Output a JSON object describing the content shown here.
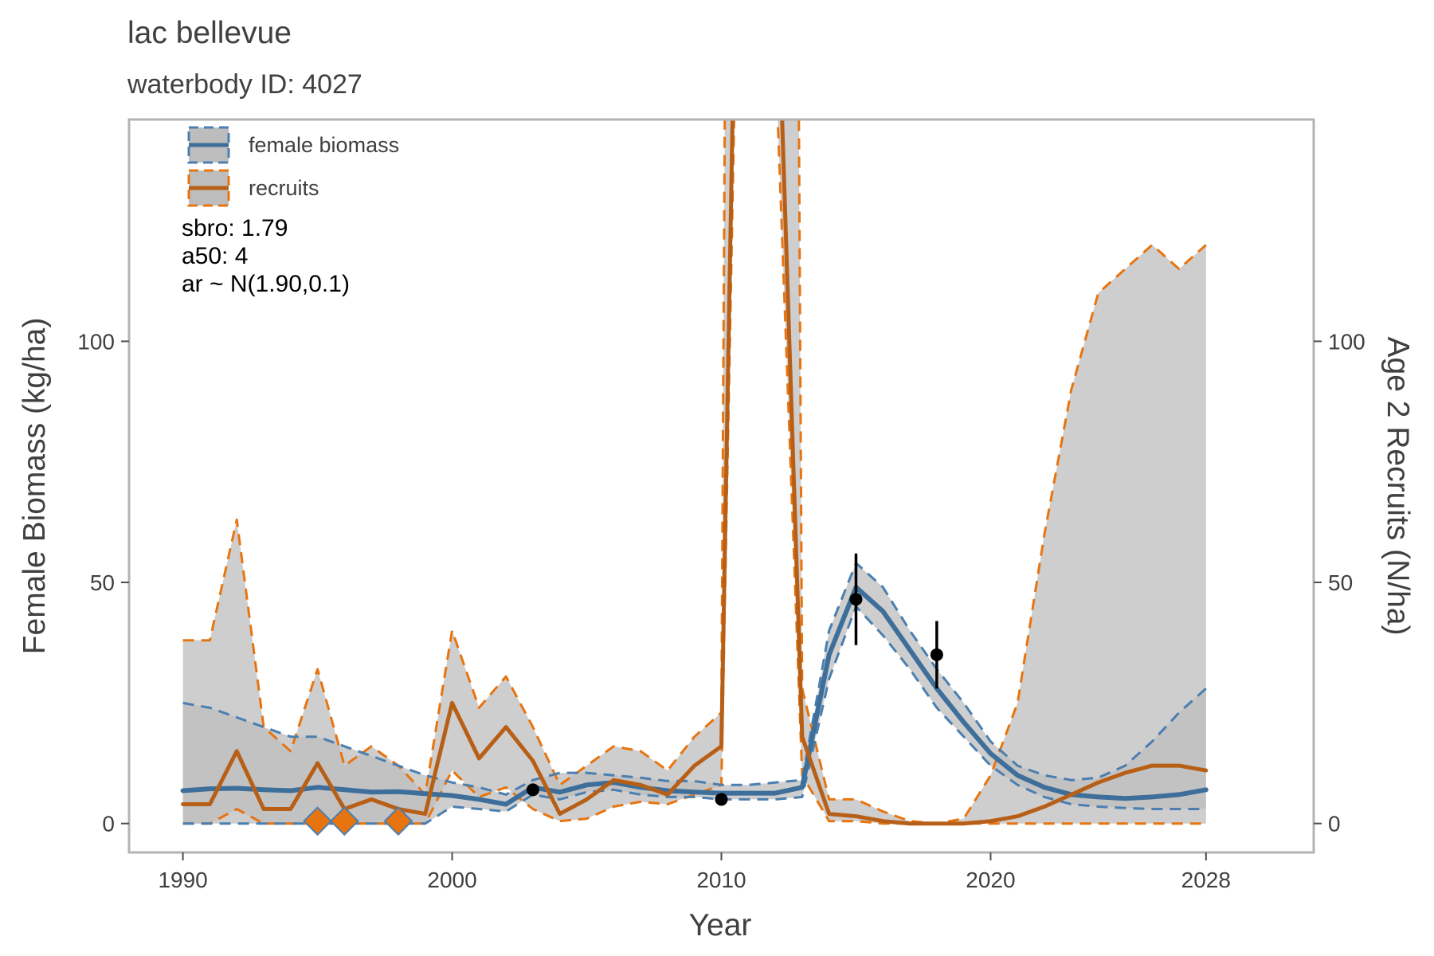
{
  "chart_data": {
    "type": "line",
    "title": "lac bellevue",
    "subtitle": "waterbody ID: 4027",
    "xlabel": "Year",
    "ylabel_left": "Female Biomass (kg/ha)",
    "ylabel_right": "Age 2 Recruits (N/ha)",
    "xlim": [
      1988,
      2032
    ],
    "ylim": [
      -6,
      146
    ],
    "x_ticks": [
      1990,
      2000,
      2010,
      2020,
      2028
    ],
    "y_ticks": [
      0,
      50,
      100
    ],
    "y_ticks_right": [
      0,
      50,
      100
    ],
    "grid": false,
    "legend_position": "top-left",
    "annotations": [
      "sbro: 1.79",
      "a50: 4",
      "ar ~ N(1.90,0.1)"
    ],
    "colors": {
      "biomass": "#3e6f9a",
      "biomass_dash": "#4a7fb0",
      "recruits": "#b85f17",
      "recruits_dash": "#e8740f",
      "band": "#bdbdbd",
      "marker": "#e8740f",
      "points": "#000000"
    },
    "series": [
      {
        "name": "female biomass",
        "x": [
          1990,
          1991,
          1992,
          1993,
          1994,
          1995,
          1996,
          1997,
          1998,
          1999,
          2000,
          2001,
          2002,
          2003,
          2004,
          2005,
          2006,
          2007,
          2008,
          2009,
          2010,
          2011,
          2012,
          2013,
          2014,
          2015,
          2016,
          2017,
          2018,
          2019,
          2020,
          2021,
          2022,
          2023,
          2024,
          2025,
          2026,
          2027,
          2028
        ],
        "y": [
          6.8,
          7.2,
          7.3,
          7.0,
          6.8,
          7.5,
          7.0,
          6.5,
          6.6,
          6.2,
          5.8,
          5.0,
          4.0,
          7.5,
          6.5,
          8.0,
          8.5,
          7.5,
          6.8,
          6.5,
          6.3,
          6.3,
          6.3,
          7.5,
          35,
          49,
          44,
          36,
          28,
          21,
          14.5,
          10,
          7.5,
          6.0,
          5.5,
          5.2,
          5.5,
          6.0,
          7.0
        ],
        "lower": [
          0,
          0,
          0,
          0,
          0,
          0,
          0,
          0,
          0,
          0,
          3.5,
          3.0,
          2.5,
          6.0,
          5.0,
          6.5,
          7.0,
          6.0,
          5.5,
          5.5,
          5.0,
          5.0,
          5.0,
          5.5,
          30,
          45,
          39,
          32,
          24,
          18,
          12,
          8,
          5.5,
          4.0,
          3.5,
          3.2,
          3.0,
          3.0,
          3.0
        ],
        "upper": [
          25,
          24,
          22,
          20,
          18,
          18,
          16,
          14,
          12,
          10,
          8.5,
          7.5,
          6,
          9,
          10.5,
          10.5,
          10,
          9.5,
          8.8,
          8.8,
          8,
          8,
          8.5,
          9,
          40,
          54,
          49,
          40,
          32,
          25,
          17,
          12,
          10,
          9,
          9.5,
          12,
          17,
          23,
          28
        ]
      },
      {
        "name": "recruits",
        "x": [
          1990,
          1991,
          1992,
          1993,
          1994,
          1995,
          1996,
          1997,
          1998,
          1999,
          2000,
          2001,
          2002,
          2003,
          2004,
          2005,
          2006,
          2007,
          2008,
          2009,
          2010,
          2011,
          2012,
          2013,
          2014,
          2015,
          2016,
          2017,
          2018,
          2019,
          2020,
          2021,
          2022,
          2023,
          2024,
          2025,
          2026,
          2027,
          2028
        ],
        "y": [
          4,
          4,
          15,
          3,
          3,
          12.5,
          3,
          5,
          3,
          2,
          25,
          13.5,
          20,
          13,
          2,
          5,
          9,
          8,
          6,
          12,
          16,
          330,
          190,
          18,
          2,
          1.5,
          0.5,
          0,
          0,
          0,
          0.5,
          1.5,
          3.5,
          6,
          8.5,
          10.5,
          12,
          12,
          11
        ],
        "lower": [
          0,
          0,
          3,
          0,
          0,
          0,
          0,
          0,
          0,
          0,
          11,
          5.5,
          7.5,
          3,
          0.5,
          1,
          3.5,
          4.5,
          4,
          6,
          8,
          300,
          160,
          10,
          0.5,
          0.5,
          0,
          0,
          0,
          0,
          0,
          0,
          0,
          0,
          0,
          0,
          0,
          0,
          0
        ],
        "upper": [
          38,
          38,
          63,
          20,
          15,
          32,
          12,
          16,
          12,
          6,
          40,
          24,
          30.5,
          20,
          8,
          12,
          16,
          15,
          11,
          18,
          23,
          999,
          999,
          28,
          5,
          5,
          2.5,
          0.5,
          0,
          1,
          10,
          25,
          60,
          90,
          110,
          115,
          120,
          115,
          120
        ]
      }
    ],
    "observed_biomass": [
      {
        "x": 2003,
        "y": 7
      },
      {
        "x": 2010,
        "y": 5
      },
      {
        "x": 2015,
        "y": 46.5,
        "low": 37,
        "high": 56
      },
      {
        "x": 2018,
        "y": 35,
        "low": 28,
        "high": 42
      }
    ],
    "recruit_markers": [
      {
        "x": 1995,
        "y": 0.5
      },
      {
        "x": 1996,
        "y": 0.5
      },
      {
        "x": 1998,
        "y": 0.5
      }
    ]
  }
}
